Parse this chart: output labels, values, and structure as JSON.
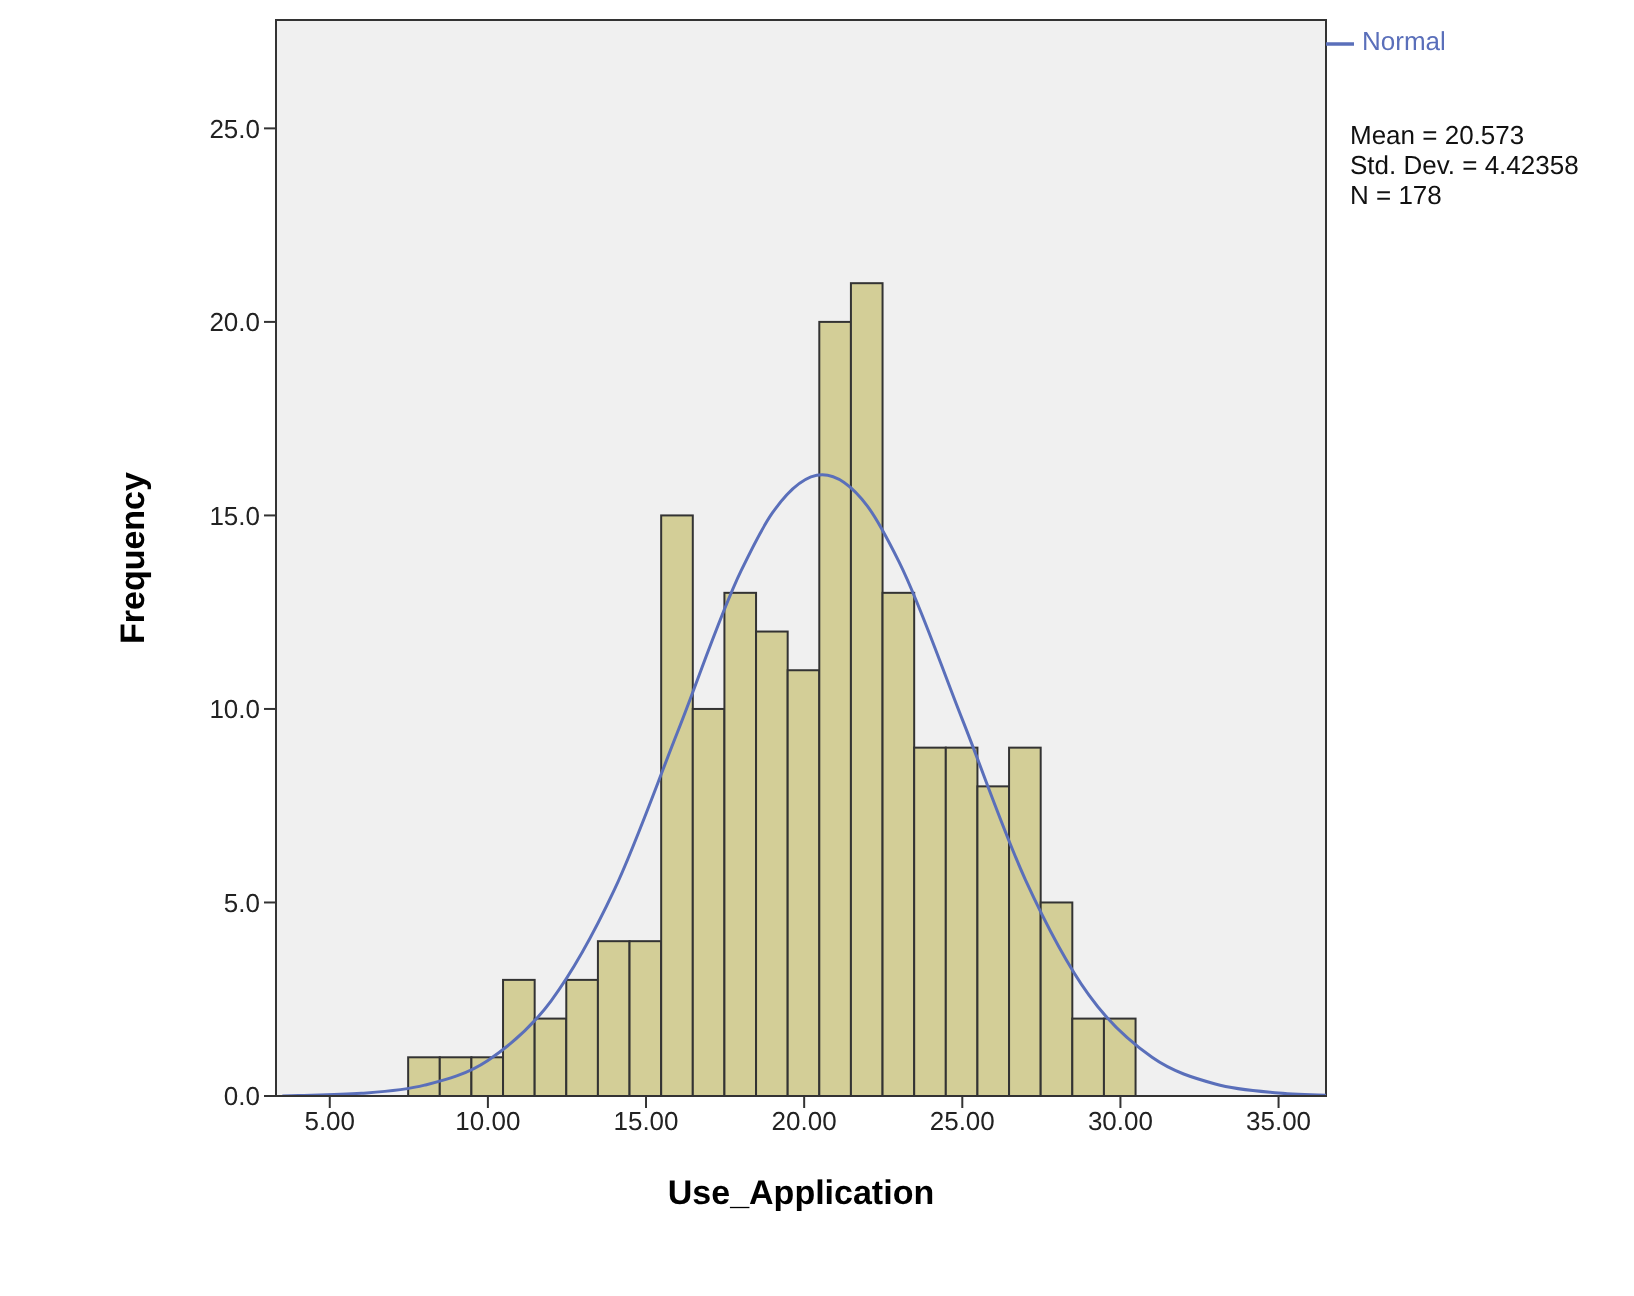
{
  "chart_data": {
    "type": "histogram",
    "xlabel": "Use_Application",
    "ylabel": "Frequency",
    "bins": [
      7.5,
      8.5,
      9.5,
      10.5,
      11.5,
      12.5,
      13.5,
      14.5,
      15.5,
      16.5,
      17.5,
      18.5,
      19.5,
      20.5,
      21.5,
      22.5,
      23.5,
      24.5,
      25.5,
      26.5,
      27.5,
      28.5,
      29.5,
      30.5
    ],
    "values": [
      1,
      1,
      1,
      3,
      2,
      3,
      4,
      4,
      15,
      10,
      13,
      12,
      11,
      20,
      21,
      13,
      9,
      9,
      8,
      9,
      5,
      2,
      2
    ],
    "color": "#d3ce97",
    "series": [
      {
        "name": "Normal",
        "type": "line",
        "color": "#5a6fba",
        "x": [
          3.5,
          4,
          6,
          8,
          10,
          12,
          14,
          16,
          18,
          19,
          20.573,
          22,
          23,
          25,
          27,
          29,
          31,
          33,
          35,
          36.5
        ],
        "values": [
          0.0,
          0.01,
          0.07,
          0.28,
          0.92,
          2.46,
          5.33,
          9.41,
          13.56,
          15.07,
          16.05,
          15.24,
          13.8,
          9.73,
          5.58,
          2.61,
          1.0,
          0.31,
          0.08,
          0.02
        ]
      }
    ],
    "xlim": [
      3.3,
      36.5
    ],
    "ylim": [
      0,
      27.8
    ],
    "xticks": [
      {
        "value": 5,
        "label": "5.00"
      },
      {
        "value": 10,
        "label": "10.00"
      },
      {
        "value": 15,
        "label": "15.00"
      },
      {
        "value": 20,
        "label": "20.00"
      },
      {
        "value": 25,
        "label": "25.00"
      },
      {
        "value": 30,
        "label": "30.00"
      },
      {
        "value": 35,
        "label": "35.00"
      }
    ],
    "yticks": [
      {
        "value": 0,
        "label": "0.0"
      },
      {
        "value": 5,
        "label": "5.0"
      },
      {
        "value": 10,
        "label": "10.0"
      },
      {
        "value": 15,
        "label": "15.0"
      },
      {
        "value": 20,
        "label": "20.0"
      },
      {
        "value": 25,
        "label": "25.0"
      }
    ],
    "legend": "top right",
    "annotations": [
      "Mean = 20.573",
      "Std. Dev. = 4.42358",
      "N = 178"
    ]
  }
}
